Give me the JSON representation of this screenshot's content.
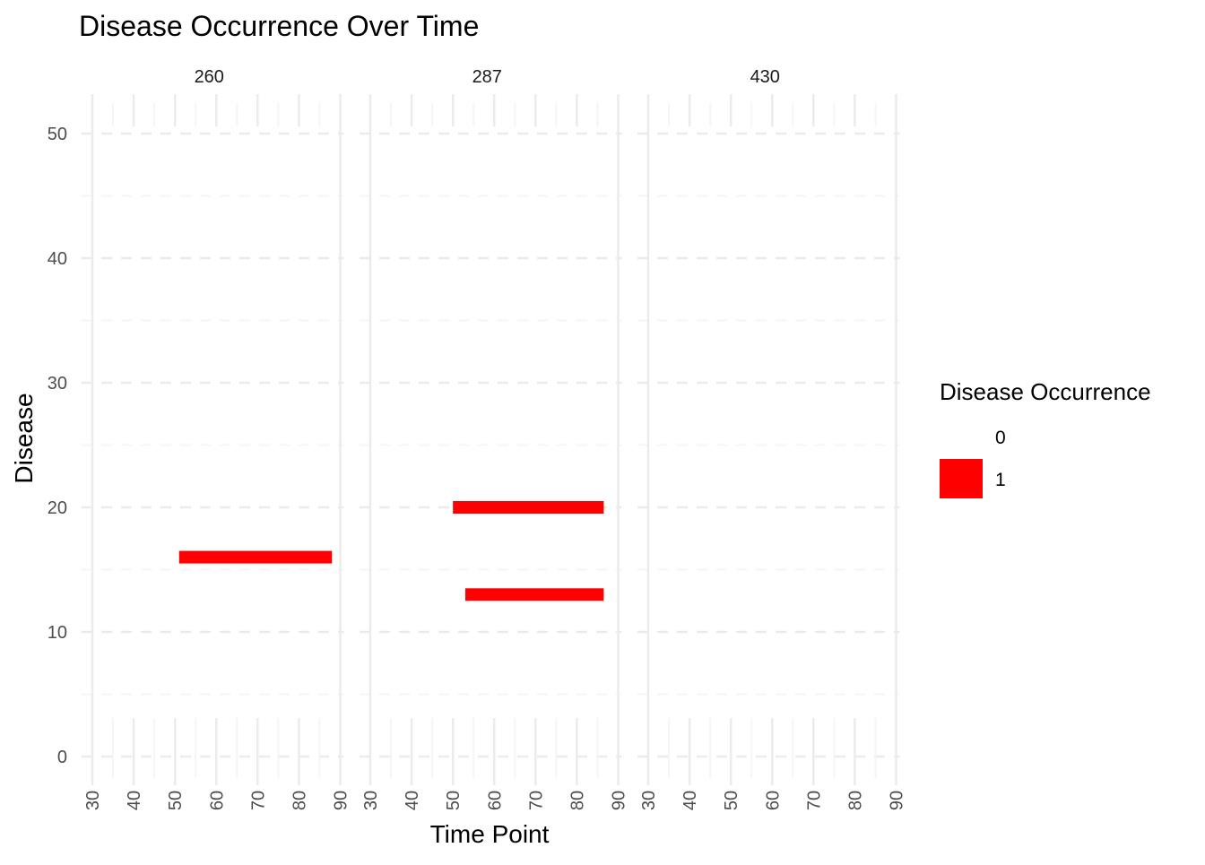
{
  "chart_data": {
    "type": "bar",
    "title": "Disease Occurrence Over Time",
    "xlabel": "Time Point",
    "ylabel": "Disease",
    "xlim": [
      30,
      90
    ],
    "ylim": [
      0,
      50
    ],
    "x_ticks": [
      30,
      40,
      50,
      60,
      70,
      80,
      90
    ],
    "y_ticks": [
      0,
      10,
      20,
      30,
      40,
      50
    ],
    "grid": true,
    "legend": {
      "title": "Disease Occurrence",
      "placement": "right",
      "entries": [
        {
          "label": "0",
          "color": "#ffffff"
        },
        {
          "label": "1",
          "color": "#ff0000"
        }
      ]
    },
    "panels": [
      {
        "label": "260",
        "segments": [
          {
            "disease": 16,
            "start": 51,
            "end": 88,
            "value": 1
          }
        ]
      },
      {
        "label": "287",
        "segments": [
          {
            "disease": 20,
            "start": 50,
            "end": 86.5,
            "value": 1
          },
          {
            "disease": 13,
            "start": 53,
            "end": 86.5,
            "value": 1
          }
        ]
      },
      {
        "label": "430",
        "segments": []
      }
    ]
  }
}
